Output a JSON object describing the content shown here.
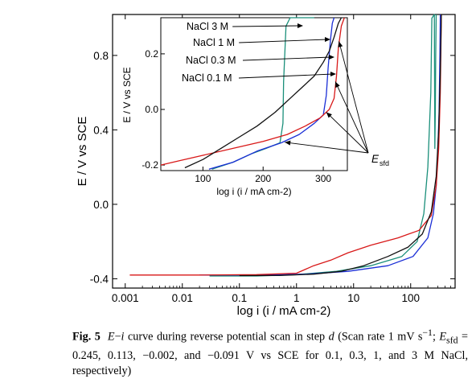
{
  "chart_data": {
    "type": "line",
    "main": {
      "xlabel": "log i (i / mA cm-2)",
      "ylabel": "E / V vs SCE",
      "x_scale": "log",
      "xlim": [
        0.0006,
        600
      ],
      "ylim": [
        -0.45,
        1.02
      ],
      "x_ticks": [
        0.001,
        0.01,
        0.1,
        1,
        10,
        100
      ],
      "x_tick_labels": [
        "0.001",
        "0.01",
        "0.1",
        "1",
        "10",
        "100"
      ],
      "y_ticks": [
        -0.4,
        0.0,
        0.4,
        0.8
      ],
      "y_tick_labels": [
        "-0.4",
        "0.0",
        "0.4",
        "0.8"
      ],
      "grid": false,
      "series": [
        {
          "color": "#1a8f7a",
          "points": [
            [
              0.03,
              -0.385
            ],
            [
              0.2,
              -0.385
            ],
            [
              1,
              -0.378
            ],
            [
              5,
              -0.36
            ],
            [
              20,
              -0.33
            ],
            [
              70,
              -0.28
            ],
            [
              130,
              -0.2
            ],
            [
              170,
              -0.05
            ],
            [
              200,
              0.2
            ],
            [
              225,
              0.6
            ],
            [
              235,
              1.0
            ],
            [
              260,
              1.02
            ],
            [
              265,
              0.3
            ],
            [
              270,
              0.5
            ],
            [
              275,
              0.8
            ],
            [
              280,
              1.02
            ]
          ]
        },
        {
          "color": "#1a2ed6",
          "points": [
            [
              0.02,
              -0.38
            ],
            [
              0.3,
              -0.38
            ],
            [
              1.5,
              -0.375
            ],
            [
              8,
              -0.36
            ],
            [
              40,
              -0.33
            ],
            [
              110,
              -0.28
            ],
            [
              200,
              -0.18
            ],
            [
              250,
              -0.05
            ],
            [
              280,
              0.1
            ],
            [
              300,
              0.3
            ],
            [
              315,
              0.5
            ],
            [
              325,
              0.8
            ],
            [
              330,
              1.02
            ]
          ]
        },
        {
          "color": "#d81818",
          "points": [
            [
              0.0012,
              -0.38
            ],
            [
              0.02,
              -0.38
            ],
            [
              0.2,
              -0.378
            ],
            [
              1,
              -0.37
            ],
            [
              2,
              -0.33
            ],
            [
              4,
              -0.3
            ],
            [
              8,
              -0.26
            ],
            [
              20,
              -0.22
            ],
            [
              60,
              -0.18
            ],
            [
              140,
              -0.14
            ],
            [
              230,
              -0.06
            ],
            [
              280,
              0.1
            ],
            [
              310,
              0.3
            ],
            [
              330,
              0.6
            ],
            [
              345,
              1.02
            ]
          ]
        },
        {
          "color": "#111111",
          "points": [
            [
              0.1,
              -0.383
            ],
            [
              0.5,
              -0.382
            ],
            [
              2,
              -0.375
            ],
            [
              6,
              -0.36
            ],
            [
              15,
              -0.33
            ],
            [
              40,
              -0.28
            ],
            [
              90,
              -0.23
            ],
            [
              160,
              -0.16
            ],
            [
              230,
              -0.04
            ],
            [
              280,
              0.15
            ],
            [
              310,
              0.4
            ],
            [
              330,
              0.7
            ],
            [
              345,
              1.02
            ]
          ]
        }
      ]
    },
    "inset": {
      "xlabel": "log i (i / mA cm-2)",
      "ylabel": "E / V vs SCE",
      "xlim": [
        30,
        340
      ],
      "ylim": [
        -0.22,
        0.33
      ],
      "x_ticks": [
        100,
        200,
        300
      ],
      "x_tick_labels": [
        "100",
        "200",
        "300"
      ],
      "y_ticks": [
        -0.2,
        0.0,
        0.2
      ],
      "y_tick_labels": [
        "-0.2",
        "0.0",
        "0.2"
      ],
      "series": [
        {
          "color": "#1a8f7a",
          "points": [
            [
              115,
              -0.215
            ],
            [
              150,
              -0.19
            ],
            [
              180,
              -0.16
            ],
            [
              205,
              -0.14
            ],
            [
              228,
              -0.12
            ],
            [
              233,
              -0.05
            ],
            [
              234,
              0.1
            ],
            [
              236,
              0.2
            ],
            [
              238,
              0.3
            ],
            [
              245,
              0.33
            ],
            [
              275,
              0.335
            ],
            [
              285,
              0.33
            ]
          ]
        },
        {
          "color": "#1a2ed6",
          "points": [
            [
              110,
              -0.215
            ],
            [
              150,
              -0.19
            ],
            [
              190,
              -0.15
            ],
            [
              230,
              -0.12
            ],
            [
              260,
              -0.09
            ],
            [
              285,
              -0.05
            ],
            [
              300,
              -0.02
            ],
            [
              305,
              0.05
            ],
            [
              308,
              0.15
            ],
            [
              312,
              0.25
            ],
            [
              315,
              0.31
            ],
            [
              318,
              0.33
            ]
          ]
        },
        {
          "color": "#d81818",
          "points": [
            [
              30,
              -0.2
            ],
            [
              60,
              -0.185
            ],
            [
              100,
              -0.165
            ],
            [
              150,
              -0.14
            ],
            [
              200,
              -0.115
            ],
            [
              240,
              -0.09
            ],
            [
              270,
              -0.06
            ],
            [
              295,
              -0.03
            ],
            [
              310,
              0.0
            ],
            [
              318,
              0.04
            ],
            [
              322,
              0.12
            ],
            [
              325,
              0.22
            ],
            [
              330,
              0.3
            ],
            [
              335,
              0.33
            ]
          ]
        },
        {
          "color": "#111111",
          "points": [
            [
              70,
              -0.21
            ],
            [
              100,
              -0.18
            ],
            [
              130,
              -0.14
            ],
            [
              160,
              -0.1
            ],
            [
              190,
              -0.06
            ],
            [
              220,
              -0.01
            ],
            [
              245,
              0.04
            ],
            [
              265,
              0.08
            ],
            [
              285,
              0.12
            ],
            [
              300,
              0.17
            ],
            [
              310,
              0.21
            ],
            [
              318,
              0.26
            ],
            [
              325,
              0.31
            ],
            [
              330,
              0.33
            ]
          ]
        }
      ],
      "labels": [
        "NaCl 3 M",
        "NaCl 1 M",
        "NaCl 0.3 M",
        "NaCl 0.1 M"
      ],
      "esfd_label": "E",
      "esfd_sub": "sfd"
    }
  },
  "caption": {
    "fig_label": "Fig. 5",
    "var_e": "E",
    "dash": "−",
    "var_i": "i",
    "text1": " curve during reverse potential scan in step ",
    "step_var": "d",
    "text2": " (Scan rate 1 mV s",
    "sup1": "−1",
    "text3": "; ",
    "esfd_var": "E",
    "esfd_sub": "sfd",
    "text4": " = 0.245, 0.113, −0.002, and −0.091 V vs SCE for 0.1, 0.3, 1, and 3 M NaCl, respectively)"
  }
}
